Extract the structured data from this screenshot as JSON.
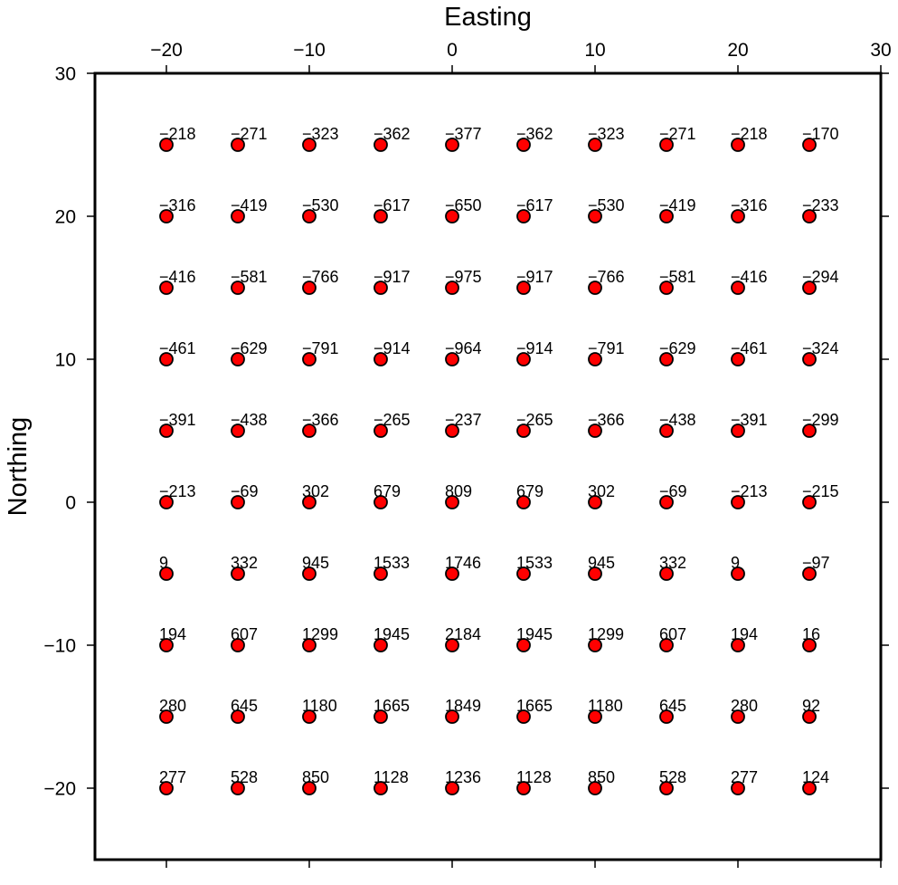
{
  "chart_data": {
    "type": "scatter",
    "xlabel": "Easting",
    "ylabel": "Northing",
    "xlim": [
      -25,
      30
    ],
    "ylim": [
      -25,
      30
    ],
    "x_ticks": [
      -20,
      -10,
      0,
      10,
      20,
      30
    ],
    "y_ticks": [
      -20,
      -10,
      0,
      10,
      20,
      30
    ],
    "x_tick_labels": [
      "−20",
      "−10",
      "0",
      "10",
      "20",
      "30"
    ],
    "y_tick_labels": [
      "−20",
      "−10",
      "0",
      "10",
      "20",
      "30"
    ],
    "x_axis_position": "top",
    "grid": false,
    "marker_color": "#ff0000",
    "marker_edge_color": "#000000",
    "grid_x": [
      -20,
      -15,
      -10,
      -5,
      0,
      5,
      10,
      15,
      20,
      25
    ],
    "grid_y": [
      25,
      20,
      15,
      10,
      5,
      0,
      -5,
      -10,
      -15,
      -20
    ],
    "labels": [
      [
        "−218",
        "−271",
        "−323",
        "−362",
        "−377",
        "−362",
        "−323",
        "−271",
        "−218",
        "−170"
      ],
      [
        "−316",
        "−419",
        "−530",
        "−617",
        "−650",
        "−617",
        "−530",
        "−419",
        "−316",
        "−233"
      ],
      [
        "−416",
        "−581",
        "−766",
        "−917",
        "−975",
        "−917",
        "−766",
        "−581",
        "−416",
        "−294"
      ],
      [
        "−461",
        "−629",
        "−791",
        "−914",
        "−964",
        "−914",
        "−791",
        "−629",
        "−461",
        "−324"
      ],
      [
        "−391",
        "−438",
        "−366",
        "−265",
        "−237",
        "−265",
        "−366",
        "−438",
        "−391",
        "−299"
      ],
      [
        "−213",
        "−69",
        "302",
        "679",
        "809",
        "679",
        "302",
        "−69",
        "−213",
        "−215"
      ],
      [
        "9",
        "332",
        "945",
        "1533",
        "1746",
        "1533",
        "945",
        "332",
        "9",
        "−97"
      ],
      [
        "194",
        "607",
        "1299",
        "1945",
        "2184",
        "1945",
        "1299",
        "607",
        "194",
        "16"
      ],
      [
        "280",
        "645",
        "1180",
        "1665",
        "1849",
        "1665",
        "1180",
        "645",
        "280",
        "92"
      ],
      [
        "277",
        "528",
        "850",
        "1128",
        "1236",
        "1128",
        "850",
        "528",
        "277",
        "124"
      ]
    ]
  }
}
